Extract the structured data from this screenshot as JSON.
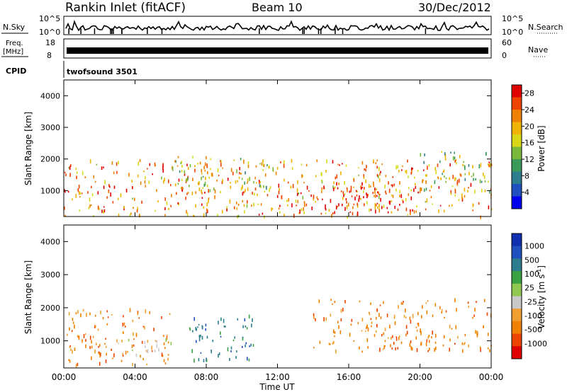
{
  "header": {
    "title": "Rankin Inlet (fitACF)",
    "beam": "Beam 10",
    "date": "30/Dec/2012"
  },
  "strips": {
    "nsky": {
      "label": "N.Sky",
      "right_label": "N.Search",
      "ticks": [
        "10^5",
        "10^0"
      ],
      "right_ticks": [
        "10^5",
        "10^0"
      ]
    },
    "freq": {
      "label": "Freq.",
      "unit": "[MHz]",
      "ticks": [
        "18",
        "8"
      ],
      "right_label": "Nave",
      "right_ticks": [
        "60",
        "0"
      ]
    },
    "cpid": {
      "label": "CPID",
      "value": "twofsound 3501"
    }
  },
  "colors": {
    "power": [
      "#0000ee",
      "#2050c0",
      "#2e7d8c",
      "#3a9a5a",
      "#7ab83c",
      "#d8d818",
      "#f0b400",
      "#f08000",
      "#ee4400",
      "#e00000"
    ],
    "velocity": [
      "#e00000",
      "#ee4400",
      "#f08000",
      "#f0a030",
      "#c8c8c8",
      "#90c850",
      "#3aa040",
      "#2e7d8c",
      "#2050c0",
      "#1030b0"
    ]
  },
  "chart_data": [
    {
      "type": "heatmap",
      "title": "Power",
      "ylabel": "Slant Range [km]",
      "ylim": [
        180,
        4500
      ],
      "yticks": [
        1000,
        2000,
        3000,
        4000
      ],
      "colorbar": {
        "label": "Power [dB]",
        "ticks": [
          4,
          8,
          12,
          16,
          20,
          24,
          28
        ],
        "range": [
          0,
          30
        ]
      },
      "regions": [
        {
          "t": [
            0,
            24
          ],
          "r": [
            200,
            2000
          ],
          "value": 22
        },
        {
          "t": [
            6,
            12
          ],
          "r": [
            1000,
            2100
          ],
          "value": 16
        },
        {
          "t": [
            13,
            20
          ],
          "r": [
            300,
            1300
          ],
          "value": 28
        },
        {
          "t": [
            20,
            24
          ],
          "r": [
            1000,
            2300
          ],
          "value": 14
        }
      ]
    },
    {
      "type": "heatmap",
      "title": "Velocity",
      "ylabel": "Slant Range [km]",
      "xlabel": "Time UT",
      "ylim": [
        180,
        4500
      ],
      "yticks": [
        1000,
        2000,
        3000,
        4000
      ],
      "xticks": [
        "00:00",
        "04:00",
        "08:00",
        "12:00",
        "16:00",
        "20:00",
        "00:00"
      ],
      "colorbar": {
        "label": "Velocity [m s",
        "ticks": [
          1000,
          500,
          100,
          25,
          -25,
          -100,
          -500,
          -1000
        ]
      },
      "regions": [
        {
          "t": [
            0,
            6
          ],
          "r": [
            300,
            2000
          ],
          "value": -200
        },
        {
          "t": [
            7,
            11
          ],
          "r": [
            400,
            1800
          ],
          "value": 800
        },
        {
          "t": [
            3,
            6
          ],
          "r": [
            600,
            1100
          ],
          "value": 0
        },
        {
          "t": [
            14,
            24
          ],
          "r": [
            700,
            2300
          ],
          "value": -300
        }
      ]
    }
  ]
}
